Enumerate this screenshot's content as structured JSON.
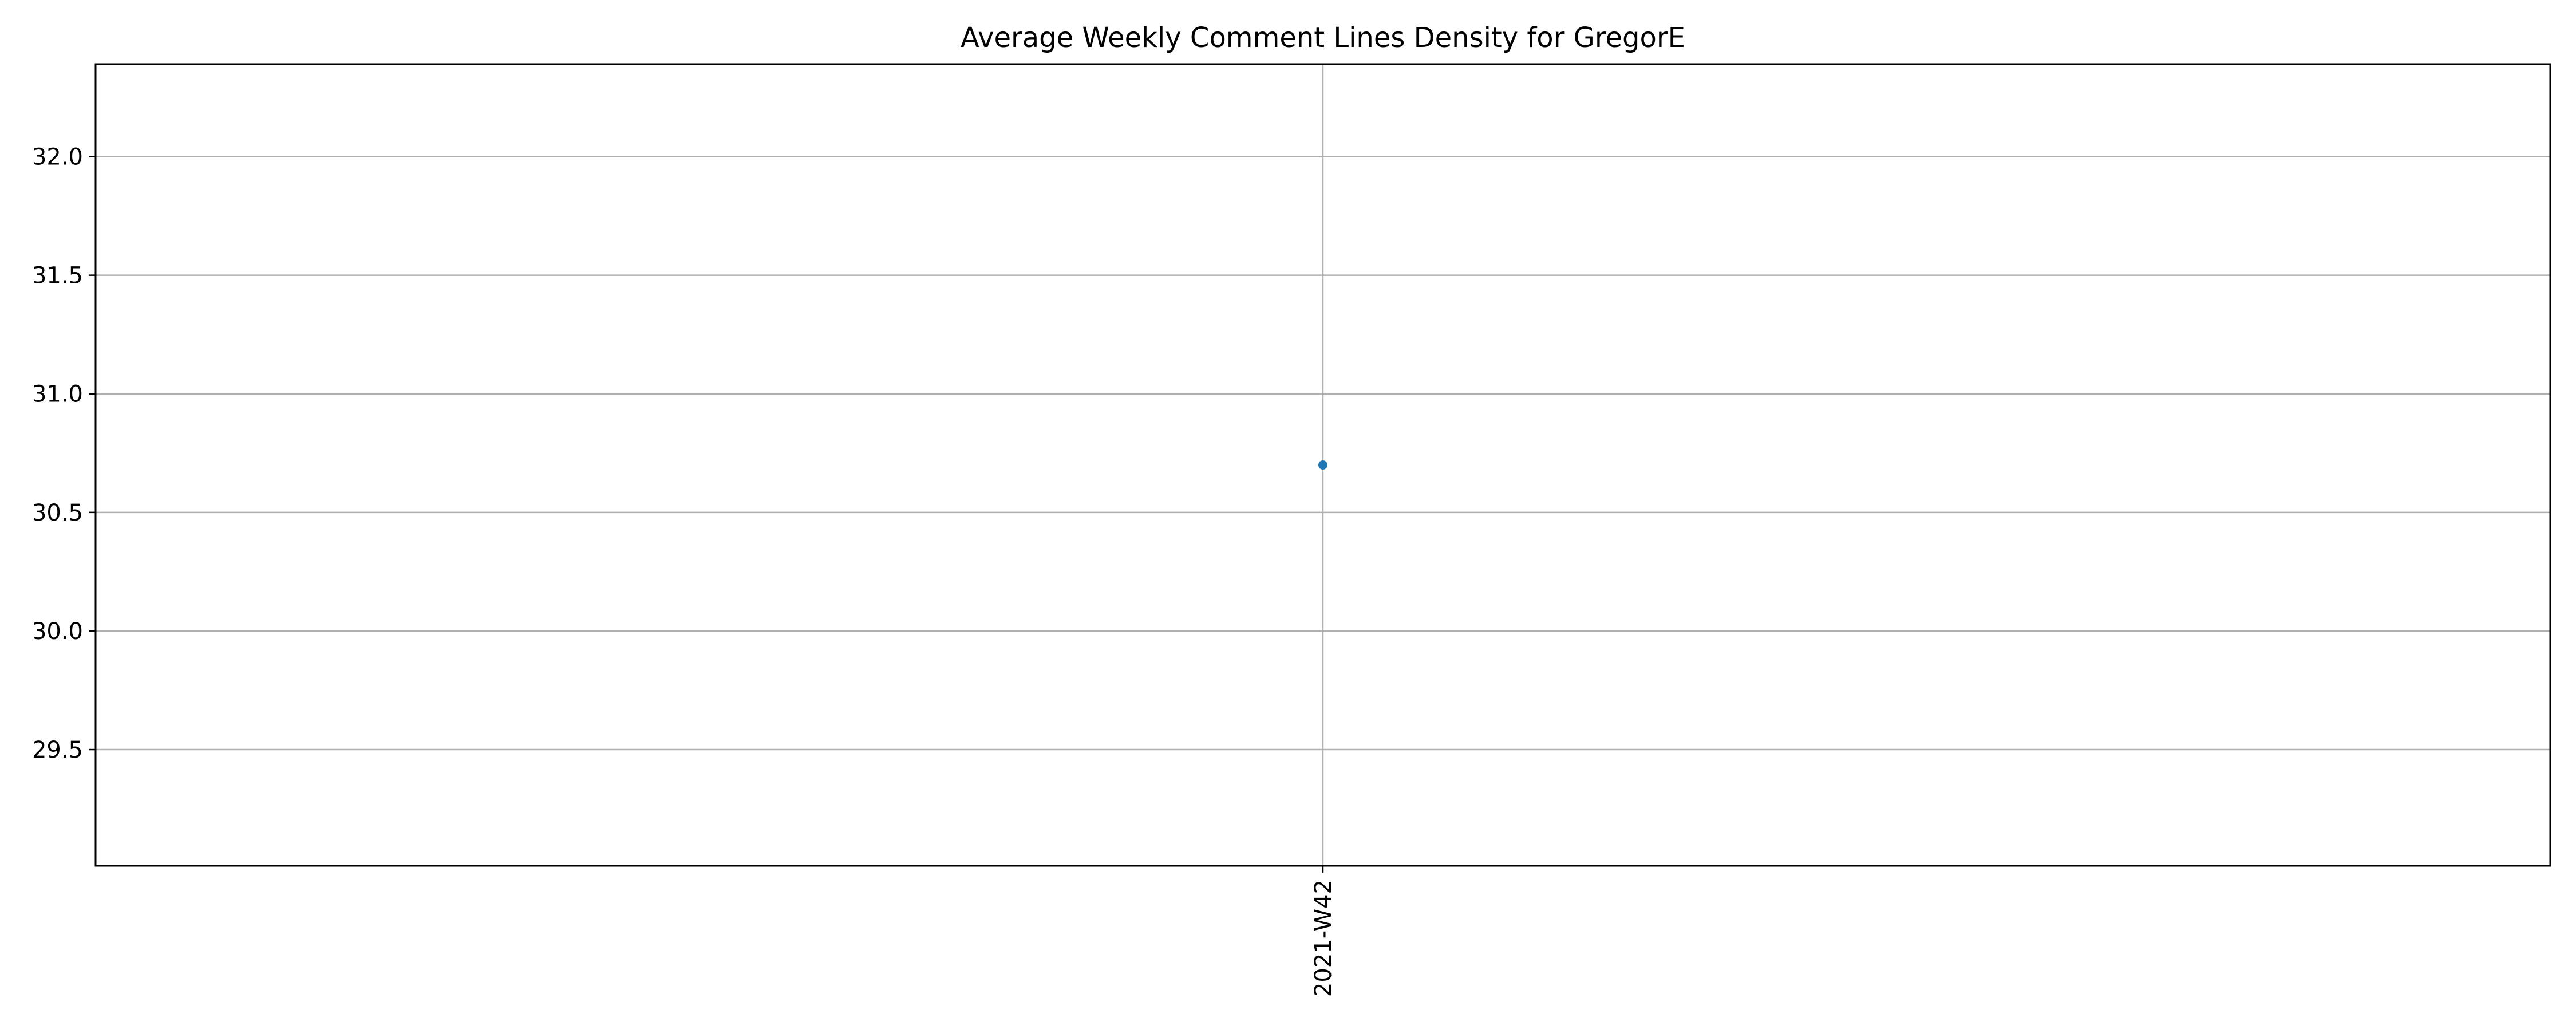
{
  "chart_data": {
    "type": "scatter",
    "title": "Average Weekly Comment Lines Density for GregorE",
    "xlabel": "",
    "ylabel": "",
    "categories": [
      "2021-W42"
    ],
    "series": [
      {
        "values": [
          30.7
        ],
        "color": "#1f77b4"
      }
    ],
    "ylim": [
      29.01,
      32.39
    ],
    "yticks": [
      29.5,
      30.0,
      30.5,
      31.0,
      31.5,
      32.0
    ],
    "ytick_labels": [
      "29.5",
      "30.0",
      "30.5",
      "31.0",
      "31.5",
      "32.0"
    ],
    "grid": true,
    "legend": "none",
    "xtick_rotation": "vertical"
  },
  "colors": {
    "grid": "#b0b0b0",
    "axes": "#000000",
    "marker": "#1f77b4"
  }
}
